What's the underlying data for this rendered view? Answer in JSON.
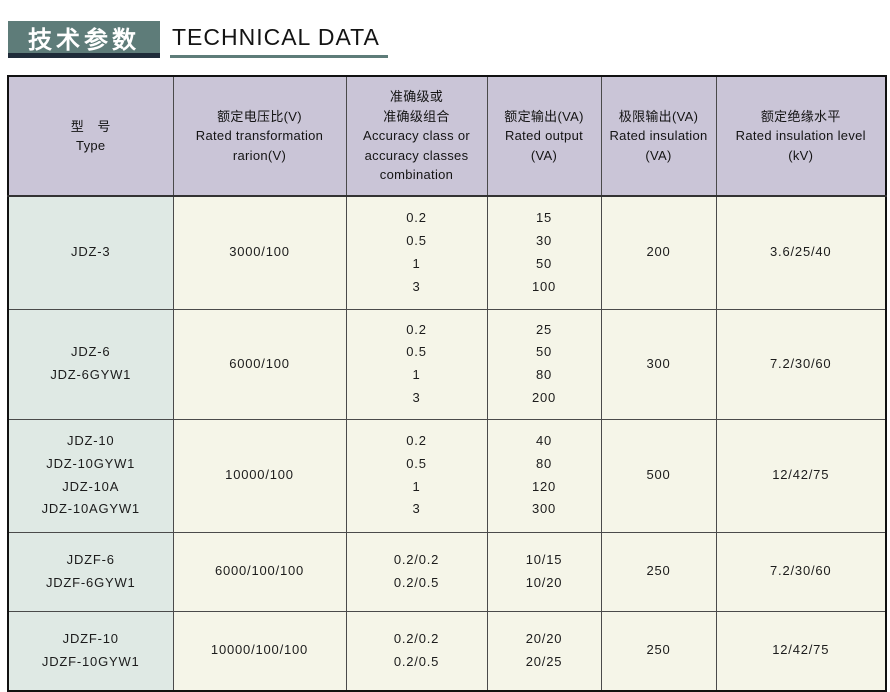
{
  "page": {
    "title_cn": "技术参数",
    "title_en": "TECHNICAL DATA"
  },
  "colors": {
    "banner_bg": "#5e7c79",
    "banner_shadow": "#1f2b39",
    "title_underline": "#5e7c79",
    "header_bg": "#cac5d7",
    "type_column_bg": "#dfe9e4",
    "cell_bg": "#f5f5e8",
    "grid_border": "#4a4a4a",
    "outer_border": "#111111"
  },
  "table": {
    "headers": [
      {
        "id": "type",
        "lines": [
          "型　号",
          "Type"
        ]
      },
      {
        "id": "voltage-ratio",
        "lines": [
          "额定电压比(V)",
          "Rated transformation",
          "rarion(V)"
        ]
      },
      {
        "id": "accuracy-class",
        "lines": [
          "准确级或",
          "准确级组合",
          "Accuracy class or",
          "accuracy classes",
          "combination"
        ]
      },
      {
        "id": "rated-output",
        "lines": [
          "额定输出(VA)",
          "Rated output",
          "(VA)"
        ]
      },
      {
        "id": "limit-output",
        "lines": [
          "极限输出(VA)",
          "Rated insulation",
          "(VA)"
        ]
      },
      {
        "id": "insulation-level",
        "lines": [
          "额定绝缘水平",
          "Rated insulation level",
          "(kV)"
        ]
      }
    ],
    "rows": [
      {
        "types": [
          "JDZ-3"
        ],
        "voltage_ratio": "3000/100",
        "accuracy_classes": [
          "0.2",
          "0.5",
          "1",
          "3"
        ],
        "rated_output": [
          "15",
          "30",
          "50",
          "100"
        ],
        "limit_output": "200",
        "insulation_level": "3.6/25/40"
      },
      {
        "types": [
          "JDZ-6",
          "JDZ-6GYW1"
        ],
        "voltage_ratio": "6000/100",
        "accuracy_classes": [
          "0.2",
          "0.5",
          "1",
          "3"
        ],
        "rated_output": [
          "25",
          "50",
          "80",
          "200"
        ],
        "limit_output": "300",
        "insulation_level": "7.2/30/60"
      },
      {
        "types": [
          "JDZ-10",
          "JDZ-10GYW1",
          "JDZ-10A",
          "JDZ-10AGYW1"
        ],
        "voltage_ratio": "10000/100",
        "accuracy_classes": [
          "0.2",
          "0.5",
          "1",
          "3"
        ],
        "rated_output": [
          "40",
          "80",
          "120",
          "300"
        ],
        "limit_output": "500",
        "insulation_level": "12/42/75"
      },
      {
        "types": [
          "JDZF-6",
          "JDZF-6GYW1"
        ],
        "voltage_ratio": "6000/100/100",
        "accuracy_classes": [
          "0.2/0.2",
          "0.2/0.5"
        ],
        "rated_output": [
          "10/15",
          "10/20"
        ],
        "limit_output": "250",
        "insulation_level": "7.2/30/60"
      },
      {
        "types": [
          "JDZF-10",
          "JDZF-10GYW1"
        ],
        "voltage_ratio": "10000/100/100",
        "accuracy_classes": [
          "0.2/0.2",
          "0.2/0.5"
        ],
        "rated_output": [
          "20/20",
          "20/25"
        ],
        "limit_output": "250",
        "insulation_level": "12/42/75"
      }
    ]
  }
}
